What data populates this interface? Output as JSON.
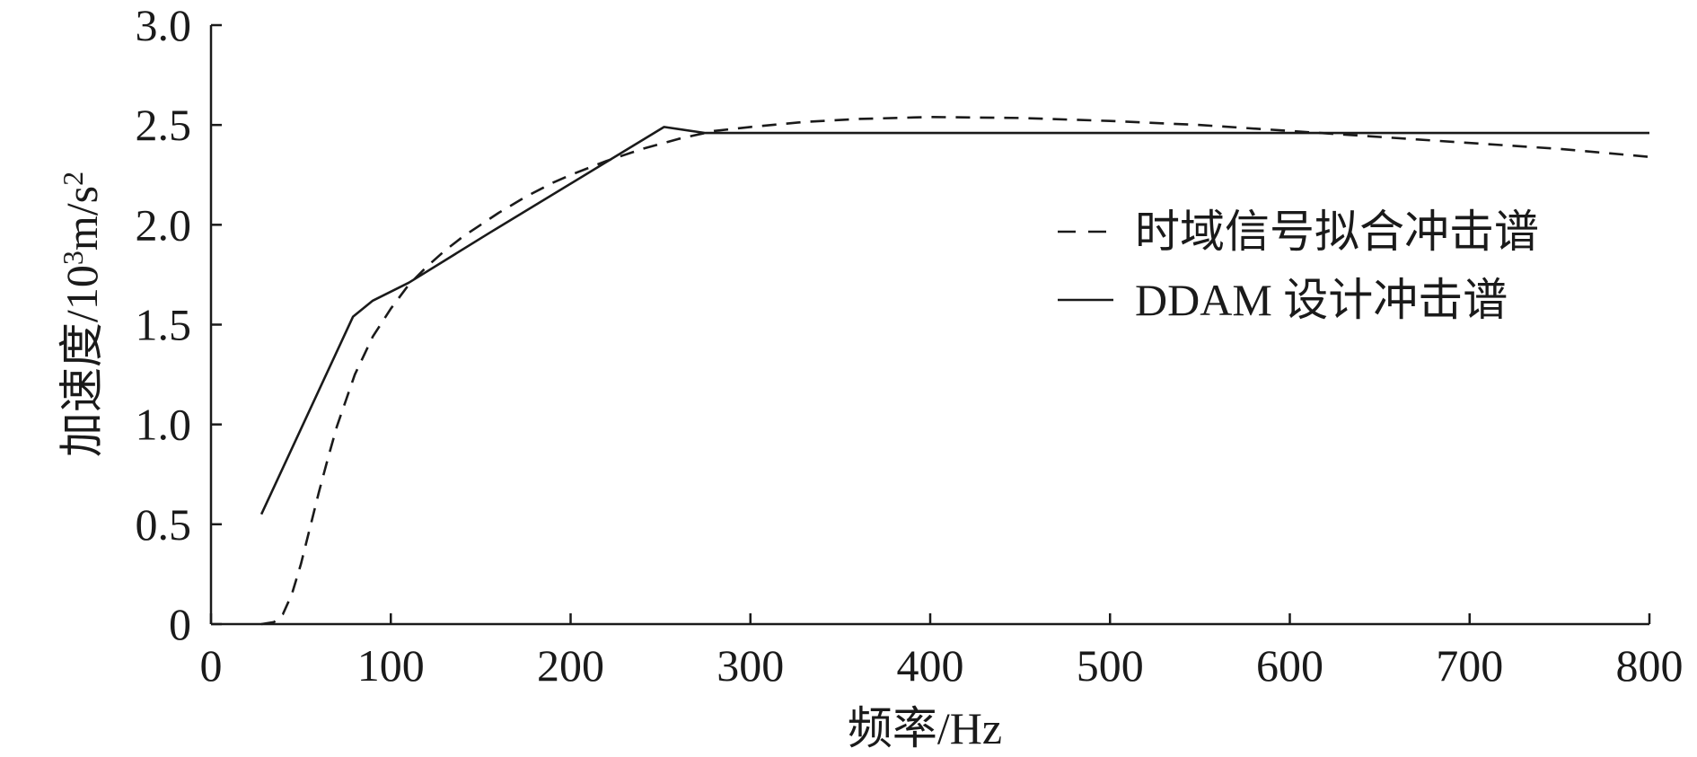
{
  "chart_data": {
    "type": "line",
    "xlabel": "频率/Hz",
    "ylabel_main": "加速度/10",
    "ylabel_sup": "3",
    "ylabel_mid": "m/s",
    "ylabel_sup2": "2",
    "xlim": [
      0,
      800
    ],
    "ylim": [
      0,
      3.0
    ],
    "grid": false,
    "legend_placement": "right",
    "x_ticks": [
      0,
      100,
      200,
      300,
      400,
      500,
      600,
      700,
      800
    ],
    "x_tick_labels": [
      "0",
      "100",
      "200",
      "300",
      "400",
      "500",
      "600",
      "700",
      "800"
    ],
    "y_ticks": [
      0,
      0.5,
      1.0,
      1.5,
      2.0,
      2.5,
      3.0
    ],
    "y_tick_labels": [
      "0",
      "0.5",
      "1.0",
      "1.5",
      "2.0",
      "2.5",
      "3.0"
    ],
    "series": [
      {
        "name": "时域信号拟合冲击谱",
        "style": "dashed",
        "color": "#1a1a1a",
        "points": [
          [
            28,
            0.0
          ],
          [
            35,
            0.01
          ],
          [
            40,
            0.05
          ],
          [
            45,
            0.15
          ],
          [
            50,
            0.3
          ],
          [
            55,
            0.48
          ],
          [
            60,
            0.66
          ],
          [
            65,
            0.83
          ],
          [
            70,
            0.99
          ],
          [
            75,
            1.12
          ],
          [
            80,
            1.25
          ],
          [
            90,
            1.44
          ],
          [
            100,
            1.58
          ],
          [
            110,
            1.7
          ],
          [
            120,
            1.79
          ],
          [
            130,
            1.87
          ],
          [
            140,
            1.94
          ],
          [
            150,
            2.0
          ],
          [
            160,
            2.06
          ],
          [
            175,
            2.14
          ],
          [
            190,
            2.21
          ],
          [
            200,
            2.25
          ],
          [
            220,
            2.32
          ],
          [
            240,
            2.38
          ],
          [
            260,
            2.43
          ],
          [
            280,
            2.47
          ],
          [
            300,
            2.49
          ],
          [
            330,
            2.515
          ],
          [
            360,
            2.53
          ],
          [
            400,
            2.54
          ],
          [
            450,
            2.535
          ],
          [
            500,
            2.52
          ],
          [
            550,
            2.5
          ],
          [
            600,
            2.47
          ],
          [
            650,
            2.44
          ],
          [
            700,
            2.41
          ],
          [
            750,
            2.38
          ],
          [
            800,
            2.34
          ]
        ]
      },
      {
        "name": "DDAM 设计冲击谱",
        "style": "solid",
        "color": "#1a1a1a",
        "points": [
          [
            28,
            0.55
          ],
          [
            79,
            1.54
          ],
          [
            90,
            1.62
          ],
          [
            110,
            1.71
          ],
          [
            155,
            1.96
          ],
          [
            252,
            2.49
          ],
          [
            275,
            2.46
          ],
          [
            800,
            2.46
          ]
        ]
      }
    ]
  }
}
